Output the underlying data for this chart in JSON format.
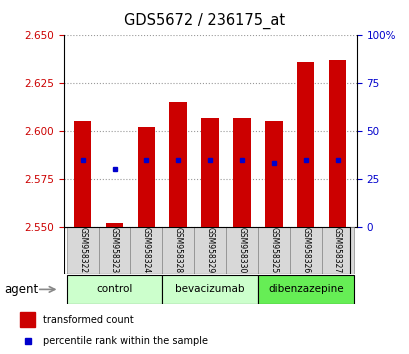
{
  "title": "GDS5672 / 236175_at",
  "samples": [
    "GSM958322",
    "GSM958323",
    "GSM958324",
    "GSM958328",
    "GSM958329",
    "GSM958330",
    "GSM958325",
    "GSM958326",
    "GSM958327"
  ],
  "bar_bottom": 2.55,
  "bar_tops": [
    2.605,
    2.552,
    2.602,
    2.615,
    2.607,
    2.607,
    2.605,
    2.636,
    2.637
  ],
  "percentile_ranks": [
    35,
    30,
    35,
    35,
    35,
    35,
    33,
    35,
    35
  ],
  "ylim_left": [
    2.55,
    2.65
  ],
  "ylim_right": [
    0,
    100
  ],
  "yticks_left": [
    2.55,
    2.575,
    2.6,
    2.625,
    2.65
  ],
  "yticks_right": [
    0,
    25,
    50,
    75,
    100
  ],
  "bar_color": "#cc0000",
  "dot_color": "#0000cc",
  "left_tick_color": "#cc0000",
  "right_tick_color": "#0000cc",
  "legend_items": [
    "transformed count",
    "percentile rank within the sample"
  ],
  "agent_label": "agent",
  "groups": [
    {
      "name": "control",
      "start": 0,
      "end": 2,
      "color": "#ccffcc"
    },
    {
      "name": "bevacizumab",
      "start": 3,
      "end": 5,
      "color": "#ccffcc"
    },
    {
      "name": "dibenzazepine",
      "start": 6,
      "end": 8,
      "color": "#66ee55"
    }
  ]
}
